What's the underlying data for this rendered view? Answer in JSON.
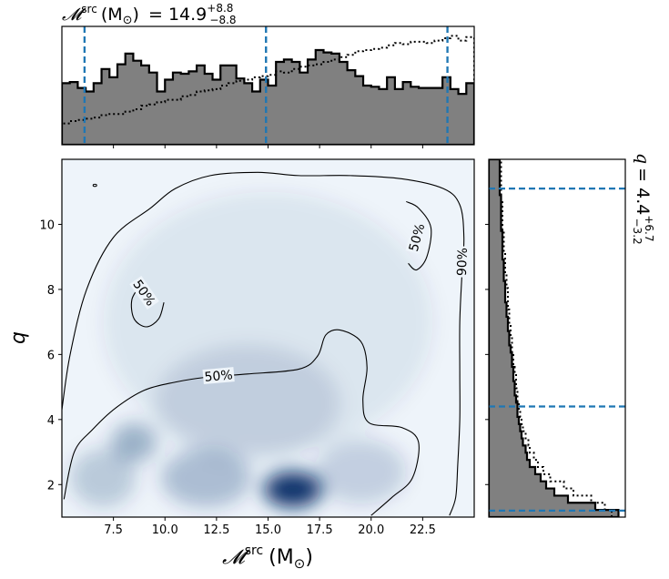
{
  "chart_data": {
    "type": "corner",
    "top_label": {
      "symbol": "𝓜",
      "sup": "src",
      "unit": "(M",
      "unit_sub": "⊙",
      "unit_close": ")",
      "value": "= 14.9",
      "plus": "+8.8",
      "minus": "−8.8"
    },
    "right_label": {
      "symbol": "q",
      "value": "= 4.4",
      "plus": "+6.7",
      "minus": "−3.2"
    },
    "xlabel": {
      "symbol": "𝓜",
      "sup": "src",
      "unit": "(M",
      "unit_sub": "⊙",
      "unit_close": ")"
    },
    "ylabel": "q",
    "xlim": [
      5.0,
      25.0
    ],
    "ylim": [
      1.0,
      12.0
    ],
    "xticks": [
      7.5,
      10.0,
      12.5,
      15.0,
      17.5,
      20.0,
      22.5
    ],
    "xtick_labels": [
      "7.5",
      "10.0",
      "12.5",
      "15.0",
      "17.5",
      "20.0",
      "22.5"
    ],
    "yticks": [
      2,
      4,
      6,
      8,
      10
    ],
    "ytick_labels": [
      "2",
      "4",
      "6",
      "8",
      "10"
    ],
    "chirp_mass_quantiles": [
      6.1,
      14.9,
      23.7
    ],
    "q_quantiles": [
      1.2,
      4.4,
      11.1
    ],
    "contour_labels": [
      {
        "text": "50%",
        "x": 12.6,
        "y": 5.35,
        "rot": -5
      },
      {
        "text": "50%",
        "x": 9.0,
        "y": 7.9,
        "rot": 55
      },
      {
        "text": "50%",
        "x": 22.2,
        "y": 9.6,
        "rot": -75
      },
      {
        "text": "90%",
        "x": 24.4,
        "y": 8.85,
        "rot": -88
      }
    ],
    "density_blobs": [
      {
        "x": 16.2,
        "y": 1.85,
        "sx": 1.4,
        "sy": 0.55,
        "a": 1.0
      },
      {
        "x": 8.5,
        "y": 3.3,
        "sx": 1.1,
        "sy": 0.6,
        "a": 0.35
      },
      {
        "x": 12.0,
        "y": 2.2,
        "sx": 2.2,
        "sy": 0.9,
        "a": 0.28
      },
      {
        "x": 7.0,
        "y": 2.2,
        "sx": 1.6,
        "sy": 0.9,
        "a": 0.22
      },
      {
        "x": 19.5,
        "y": 2.4,
        "sx": 2.2,
        "sy": 1.0,
        "a": 0.18
      },
      {
        "x": 14.0,
        "y": 4.5,
        "sx": 4.5,
        "sy": 1.8,
        "a": 0.12
      },
      {
        "x": 15.0,
        "y": 7.0,
        "sx": 8.0,
        "sy": 4.0,
        "a": 0.08
      }
    ],
    "contour_90": [
      [
        5.0,
        4.3
      ],
      [
        5.4,
        6.0
      ],
      [
        6.2,
        8.0
      ],
      [
        7.5,
        9.6
      ],
      [
        9.3,
        10.5
      ],
      [
        10.5,
        11.1
      ],
      [
        12.2,
        11.5
      ],
      [
        14.5,
        11.6
      ],
      [
        16.5,
        11.5
      ],
      [
        19.0,
        11.5
      ],
      [
        21.5,
        11.4
      ],
      [
        23.5,
        11.1
      ],
      [
        24.3,
        10.6
      ],
      [
        24.5,
        9.6
      ],
      [
        24.4,
        8.4
      ],
      [
        24.3,
        7.0
      ],
      [
        24.3,
        5.4
      ],
      [
        24.3,
        4.0
      ],
      [
        24.2,
        2.6
      ],
      [
        24.1,
        1.6
      ],
      [
        23.8,
        1.05
      ]
    ],
    "contour_50_main": [
      [
        5.1,
        1.55
      ],
      [
        5.6,
        3.0
      ],
      [
        6.5,
        3.7
      ],
      [
        7.6,
        4.35
      ],
      [
        9.0,
        4.9
      ],
      [
        10.5,
        5.15
      ],
      [
        12.0,
        5.3
      ],
      [
        14.0,
        5.4
      ],
      [
        16.5,
        5.55
      ],
      [
        17.4,
        5.95
      ],
      [
        17.8,
        6.6
      ],
      [
        18.5,
        6.75
      ],
      [
        19.5,
        6.4
      ],
      [
        19.8,
        5.6
      ],
      [
        19.6,
        4.6
      ],
      [
        19.9,
        3.9
      ],
      [
        21.5,
        3.75
      ],
      [
        22.3,
        3.3
      ],
      [
        22.0,
        2.2
      ],
      [
        21.0,
        1.6
      ],
      [
        20.0,
        1.05
      ]
    ],
    "contour_50_left": [
      [
        8.9,
        8.2
      ],
      [
        8.4,
        7.7
      ],
      [
        8.5,
        7.1
      ],
      [
        9.1,
        6.85
      ],
      [
        9.7,
        7.1
      ],
      [
        9.95,
        7.6
      ]
    ],
    "contour_50_right": [
      [
        21.7,
        10.7
      ],
      [
        22.3,
        10.5
      ],
      [
        22.9,
        9.9
      ],
      [
        22.7,
        9.0
      ],
      [
        22.2,
        8.6
      ],
      [
        21.8,
        8.8
      ]
    ],
    "top_hist_solid": [
      0.52,
      0.53,
      0.48,
      0.45,
      0.52,
      0.64,
      0.57,
      0.68,
      0.77,
      0.71,
      0.67,
      0.61,
      0.45,
      0.55,
      0.61,
      0.6,
      0.62,
      0.67,
      0.6,
      0.55,
      0.67,
      0.67,
      0.56,
      0.52,
      0.45,
      0.55,
      0.5,
      0.7,
      0.72,
      0.7,
      0.61,
      0.72,
      0.8,
      0.78,
      0.77,
      0.7,
      0.63,
      0.58,
      0.5,
      0.49,
      0.47,
      0.57,
      0.47,
      0.53,
      0.49,
      0.48,
      0.48,
      0.48,
      0.57,
      0.47,
      0.43,
      0.52
    ],
    "top_hist_dotted": [
      0.18,
      0.2,
      0.21,
      0.22,
      0.23,
      0.25,
      0.26,
      0.26,
      0.28,
      0.3,
      0.33,
      0.34,
      0.36,
      0.38,
      0.38,
      0.41,
      0.42,
      0.45,
      0.46,
      0.47,
      0.5,
      0.52,
      0.54,
      0.55,
      0.57,
      0.58,
      0.59,
      0.62,
      0.61,
      0.64,
      0.66,
      0.67,
      0.68,
      0.7,
      0.72,
      0.74,
      0.76,
      0.79,
      0.8,
      0.81,
      0.82,
      0.84,
      0.86,
      0.85,
      0.87,
      0.87,
      0.86,
      0.88,
      0.9,
      0.92,
      0.88,
      0.91
    ],
    "right_hist_solid": [
      0.95,
      0.78,
      0.58,
      0.48,
      0.42,
      0.38,
      0.34,
      0.3,
      0.28,
      0.27,
      0.25,
      0.24,
      0.23,
      0.22,
      0.21,
      0.21,
      0.2,
      0.19,
      0.19,
      0.18,
      0.18,
      0.17,
      0.17,
      0.16,
      0.15,
      0.15,
      0.14,
      0.14,
      0.13,
      0.13,
      0.12,
      0.12,
      0.12,
      0.11,
      0.11,
      0.11,
      0.1,
      0.1,
      0.1,
      0.1,
      0.09,
      0.09,
      0.09,
      0.09,
      0.09,
      0.08,
      0.08,
      0.08,
      0.08,
      0.08
    ],
    "right_hist_dotted": [
      0.9,
      0.85,
      0.75,
      0.62,
      0.55,
      0.45,
      0.4,
      0.36,
      0.33,
      0.3,
      0.29,
      0.27,
      0.25,
      0.24,
      0.23,
      0.22,
      0.21,
      0.21,
      0.2,
      0.2,
      0.19,
      0.18,
      0.18,
      0.17,
      0.17,
      0.16,
      0.16,
      0.15,
      0.15,
      0.14,
      0.14,
      0.14,
      0.13,
      0.13,
      0.12,
      0.12,
      0.12,
      0.11,
      0.11,
      0.11,
      0.1,
      0.1,
      0.1,
      0.1,
      0.09,
      0.09,
      0.09,
      0.09,
      0.09,
      0.09
    ],
    "colors": {
      "hist_fill": "#808080",
      "quantile": "#1f77b4",
      "contour": "#000000",
      "density": "#08306b"
    }
  }
}
